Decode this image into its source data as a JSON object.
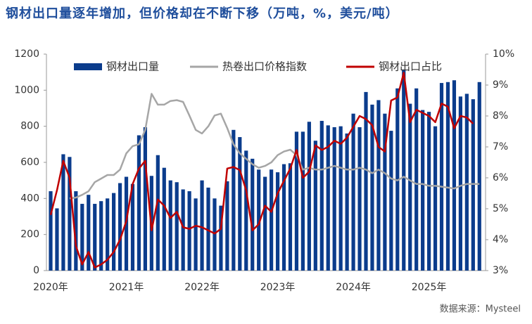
{
  "chart_data": {
    "type": "bar_line",
    "title": "钢材出口量逐年增加，但价格却在不断下移（万吨，%，美元/吨）",
    "source": "数据来源：Mysteel",
    "categories": [
      "2020年",
      null,
      null,
      null,
      null,
      null,
      null,
      null,
      null,
      null,
      null,
      null,
      "2021年",
      null,
      null,
      null,
      null,
      null,
      null,
      null,
      null,
      null,
      null,
      null,
      "2022年",
      null,
      null,
      null,
      null,
      null,
      null,
      null,
      null,
      null,
      null,
      null,
      "2023年",
      null,
      null,
      null,
      null,
      null,
      null,
      null,
      null,
      null,
      null,
      null,
      "2024年",
      null,
      null,
      null,
      null,
      null,
      null,
      null,
      null,
      null,
      null,
      null,
      "2025年",
      null,
      null,
      null,
      null,
      null,
      null,
      null,
      null
    ],
    "series": [
      {
        "name": "钢材出口量",
        "kind": "bar",
        "color": "#0b3c8c",
        "axis": "y",
        "values": [
          440,
          345,
          645,
          630,
          440,
          370,
          420,
          370,
          385,
          400,
          430,
          485,
          520,
          480,
          750,
          795,
          525,
          640,
          570,
          500,
          490,
          450,
          440,
          400,
          500,
          460,
          400,
          360,
          495,
          780,
          740,
          665,
          620,
          560,
          520,
          560,
          545,
          590,
          595,
          770,
          770,
          825,
          720,
          830,
          805,
          795,
          800,
          760,
          870,
          795,
          990,
          920,
          945,
          870,
          775,
          1010,
          1115,
          925,
          1010,
          890,
          880,
          800,
          1040,
          1045,
          1055,
          965,
          980,
          950,
          1045
        ]
      },
      {
        "name": "热卷出口价格指数",
        "kind": "line",
        "color": "#a6a6a6",
        "axis": "y",
        "values": [
          null,
          null,
          null,
          400,
          405,
          420,
          440,
          490,
          510,
          530,
          530,
          560,
          650,
          690,
          700,
          780,
          980,
          920,
          920,
          940,
          945,
          935,
          860,
          780,
          760,
          800,
          860,
          870,
          790,
          700,
          650,
          620,
          590,
          570,
          580,
          600,
          640,
          660,
          670,
          640,
          560,
          570,
          560,
          560,
          570,
          580,
          570,
          560,
          560,
          570,
          560,
          540,
          560,
          540,
          510,
          500,
          520,
          500,
          480,
          480,
          470,
          470,
          465,
          460,
          455,
          470,
          480,
          480,
          480
        ]
      },
      {
        "name": "钢材出口占比",
        "kind": "line",
        "color": "#c00000",
        "axis": "y2",
        "values": [
          4.8,
          5.6,
          6.55,
          6.0,
          3.8,
          3.2,
          3.6,
          3.1,
          3.2,
          3.35,
          3.6,
          4.0,
          4.6,
          5.8,
          6.3,
          6.55,
          4.3,
          5.3,
          5.1,
          4.7,
          4.9,
          4.4,
          4.35,
          4.45,
          4.4,
          4.3,
          4.2,
          4.35,
          6.3,
          6.35,
          6.25,
          5.6,
          4.3,
          4.5,
          5.1,
          4.9,
          5.5,
          5.9,
          6.3,
          6.9,
          6.0,
          6.2,
          7.05,
          6.9,
          7.0,
          7.2,
          7.1,
          7.3,
          7.65,
          8.0,
          7.9,
          7.7,
          7.0,
          6.85,
          8.5,
          8.6,
          9.4,
          7.8,
          8.2,
          8.1,
          8.0,
          7.8,
          8.4,
          8.3,
          7.6,
          8.0,
          7.95,
          7.75,
          null
        ]
      }
    ],
    "ylim": [
      0,
      1200
    ],
    "yticks": [
      0,
      200,
      400,
      600,
      800,
      1000,
      1200
    ],
    "y2lim": [
      3,
      10
    ],
    "y2ticks": [
      {
        "value": 3,
        "label": "3%"
      },
      {
        "value": 4,
        "label": "4%"
      },
      {
        "value": 5,
        "label": "5%"
      },
      {
        "value": 6,
        "label": "6%"
      },
      {
        "value": 7,
        "label": "7%"
      },
      {
        "value": 8,
        "label": "8%"
      },
      {
        "value": 9,
        "label": "9%"
      },
      {
        "value": 10,
        "label": "10%"
      }
    ],
    "legend": "top"
  }
}
